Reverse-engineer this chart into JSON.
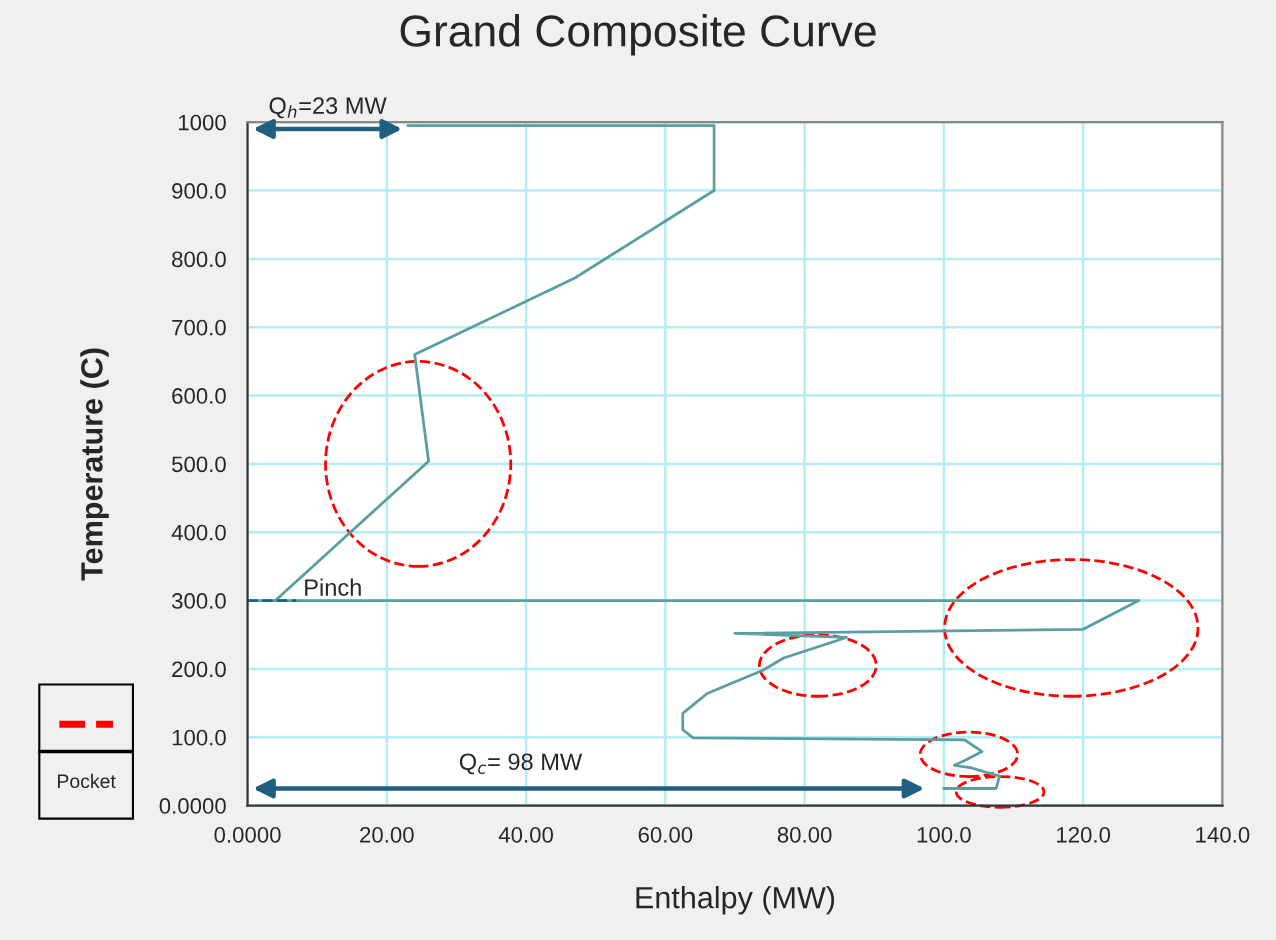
{
  "chart_data": {
    "type": "line",
    "title": "Grand Composite Curve",
    "xlabel": "Enthalpy (MW)",
    "ylabel": "Temperature (C)",
    "xlim": [
      0,
      140
    ],
    "ylim": [
      0,
      1000
    ],
    "xticks": [
      {
        "value": 0,
        "label": "0.0000"
      },
      {
        "value": 20,
        "label": "20.00"
      },
      {
        "value": 40,
        "label": "40.00"
      },
      {
        "value": 60,
        "label": "60.00"
      },
      {
        "value": 80,
        "label": "80.00"
      },
      {
        "value": 100,
        "label": "100.0"
      },
      {
        "value": 120,
        "label": "120.0"
      },
      {
        "value": 140,
        "label": "140.0"
      }
    ],
    "yticks": [
      {
        "value": 0,
        "label": "0.0000"
      },
      {
        "value": 100,
        "label": "100.0"
      },
      {
        "value": 200,
        "label": "200.0"
      },
      {
        "value": 300,
        "label": "300.0"
      },
      {
        "value": 400,
        "label": "400.0"
      },
      {
        "value": 500,
        "label": "500.0"
      },
      {
        "value": 600,
        "label": "600.0"
      },
      {
        "value": 700,
        "label": "700.0"
      },
      {
        "value": 800,
        "label": "800.0"
      },
      {
        "value": 900,
        "label": "900.0"
      },
      1000
    ],
    "grid": true,
    "marker": "none",
    "line_style": "solid",
    "series": [
      {
        "color": "#5a9ea0",
        "x": [
          23,
          67,
          67,
          47,
          24,
          26,
          4,
          0,
          128,
          120,
          70,
          86,
          77,
          74,
          66,
          62.5,
          62.5,
          64,
          103,
          105.5,
          103,
          101.5,
          104,
          108,
          107.5,
          100
        ],
        "values": [
          995,
          995,
          900,
          772,
          660,
          504,
          300,
          300,
          300,
          258,
          252,
          246,
          216,
          198,
          164,
          135,
          111,
          99,
          96,
          79,
          66,
          59,
          55,
          43,
          25,
          25
        ]
      }
    ],
    "annotations": [
      {
        "text": "Q$_{h}$=23 MW",
        "x": 23,
        "y": 990
      },
      "Q$_{c}$= 98 MW",
      {
        "text": "Pinch",
        "x": 0,
        "y": 300
      },
      "Pocket"
    ]
  }
}
